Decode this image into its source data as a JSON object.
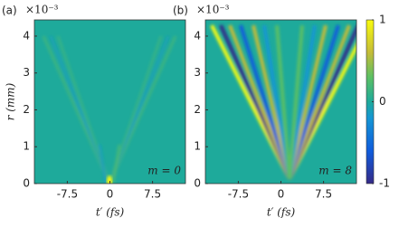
{
  "chart_data": [
    {
      "type": "heatmap",
      "panel_label": "(a)",
      "scale_label": "×10⁻³",
      "annotation": "m = 0",
      "x_label": "t′ (fs)",
      "y_label": "r (mm)",
      "xlim": [
        -13.3,
        13.3
      ],
      "xticks": [
        -7.5,
        0,
        7.5
      ],
      "ylim": [
        0,
        4.44
      ],
      "yticks": [
        0,
        1,
        2,
        3,
        4
      ]
    },
    {
      "type": "heatmap",
      "panel_label": "(b)",
      "scale_label": "×10⁻³",
      "annotation": "m = 8",
      "x_label": "t′ (fs)",
      "xlim": [
        -13.3,
        13.3
      ],
      "xticks": [
        -7.5,
        0,
        7.5
      ],
      "ylim": [
        0,
        4.44
      ],
      "yticks": [
        0,
        1,
        2,
        3,
        4
      ]
    }
  ],
  "colorbar": {
    "lim": [
      -1,
      1
    ],
    "ticks": [
      1,
      0,
      -1
    ]
  }
}
